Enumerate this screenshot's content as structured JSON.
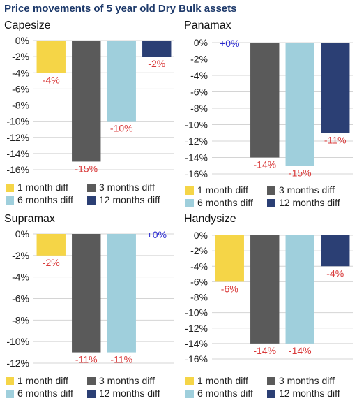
{
  "title": "Price movements of 5 year old Dry Bulk assets",
  "colors": {
    "1 month diff": "#f5d547",
    "3 months diff": "#5a5a5a",
    "6 months diff": "#9fcfdc",
    "12 months diff": "#2b3f74",
    "negative_label": "#d93a3a",
    "positive_label": "#2a2ad0",
    "axis_text": "#222222",
    "grid": "#d4d4d4"
  },
  "chart_data": [
    {
      "type": "bar",
      "title": "Capesize",
      "categories": [
        "1 month diff",
        "3 months diff",
        "6 months diff",
        "12 months diff"
      ],
      "values": [
        -4,
        -15,
        -10,
        -2
      ],
      "data_labels": [
        "-4%",
        "-15%",
        "-10%",
        "-2%"
      ],
      "ylim": [
        -16,
        0
      ],
      "yticks": [
        0,
        -2,
        -4,
        -6,
        -8,
        -10,
        -12,
        -14,
        -16
      ],
      "ytick_labels": [
        "0%",
        "-2%",
        "-4%",
        "-6%",
        "-8%",
        "-10%",
        "-12%",
        "-14%",
        "-16%"
      ],
      "legend": [
        "1 month diff",
        "3 months diff",
        "6 months diff",
        "12 months diff"
      ],
      "legend_position": "bottom",
      "grid": true
    },
    {
      "type": "bar",
      "title": "Panamax",
      "categories": [
        "1 month diff",
        "3 months diff",
        "6 months diff",
        "12 months diff"
      ],
      "values": [
        0,
        -14,
        -15,
        -11
      ],
      "data_labels": [
        "+0%",
        "-14%",
        "-15%",
        "-11%"
      ],
      "ylim": [
        -16,
        0
      ],
      "yticks": [
        0,
        -2,
        -4,
        -6,
        -8,
        -10,
        -12,
        -14,
        -16
      ],
      "ytick_labels": [
        "0%",
        "-2%",
        "-4%",
        "-6%",
        "-8%",
        "-10%",
        "-12%",
        "-14%",
        "-16%"
      ],
      "legend": [
        "1 month diff",
        "3 months diff",
        "6 months diff",
        "12 months diff"
      ],
      "legend_position": "bottom",
      "grid": true
    },
    {
      "type": "bar",
      "title": "Supramax",
      "categories": [
        "1 month diff",
        "3 months diff",
        "6 months diff",
        "12 months diff"
      ],
      "values": [
        -2,
        -11,
        -11,
        0
      ],
      "data_labels": [
        "-2%",
        "-11%",
        "-11%",
        "+0%"
      ],
      "ylim": [
        -12,
        0
      ],
      "yticks": [
        0,
        -2,
        -4,
        -6,
        -8,
        -10,
        -12
      ],
      "ytick_labels": [
        "0%",
        "-2%",
        "-4%",
        "-6%",
        "-8%",
        "-10%",
        "-12%"
      ],
      "legend": [
        "1 month diff",
        "3 months diff",
        "6 months diff",
        "12 months diff"
      ],
      "legend_position": "bottom",
      "grid": true
    },
    {
      "type": "bar",
      "title": "Handysize",
      "categories": [
        "1 month diff",
        "3 months diff",
        "6 months diff",
        "12 months diff"
      ],
      "values": [
        -6,
        -14,
        -14,
        -4
      ],
      "data_labels": [
        "-6%",
        "-14%",
        "-14%",
        "-4%"
      ],
      "ylim": [
        -16,
        0
      ],
      "yticks": [
        0,
        -2,
        -4,
        -6,
        -8,
        -10,
        -12,
        -14,
        -16
      ],
      "ytick_labels": [
        "0%",
        "-2%",
        "-4%",
        "-6%",
        "-8%",
        "-10%",
        "-12%",
        "-14%",
        "-16%"
      ],
      "legend": [
        "1 month diff",
        "3 months diff",
        "6 months diff",
        "12 months diff"
      ],
      "legend_position": "bottom",
      "grid": true
    }
  ]
}
